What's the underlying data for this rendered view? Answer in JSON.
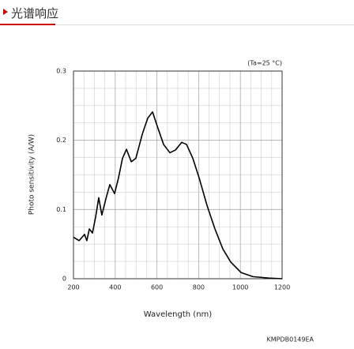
{
  "header": {
    "title": "光谱响应"
  },
  "chart_data": {
    "type": "line",
    "annotation": "(Ta=25 °C)",
    "x_label": "Wavelength (nm)",
    "y_label": "Photo sensitivity (A/W)",
    "figure_code": "KMPDB0149EA",
    "x": [
      200,
      227,
      253,
      264,
      276,
      291,
      306,
      321,
      336,
      355,
      374,
      397,
      416,
      435,
      454,
      477,
      499,
      530,
      556,
      579,
      602,
      632,
      662,
      689,
      719,
      742,
      772,
      802,
      840,
      878,
      916,
      954,
      1003,
      1060,
      1136,
      1200
    ],
    "series": [
      {
        "color": "#000000",
        "values": [
          0.06,
          0.055,
          0.064,
          0.055,
          0.072,
          0.066,
          0.089,
          0.117,
          0.092,
          0.115,
          0.136,
          0.123,
          0.146,
          0.174,
          0.187,
          0.169,
          0.174,
          0.209,
          0.232,
          0.241,
          0.22,
          0.194,
          0.182,
          0.186,
          0.197,
          0.194,
          0.174,
          0.146,
          0.106,
          0.072,
          0.043,
          0.024,
          0.009,
          0.003,
          0.001,
          0
        ]
      }
    ],
    "xlim": [
      200,
      1200
    ],
    "xticks": [
      200,
      400,
      600,
      800,
      1000,
      1200
    ],
    "ylim": [
      0,
      0.3
    ],
    "yticks": [
      0,
      0.1,
      0.2,
      0.3
    ],
    "grid": true
  }
}
